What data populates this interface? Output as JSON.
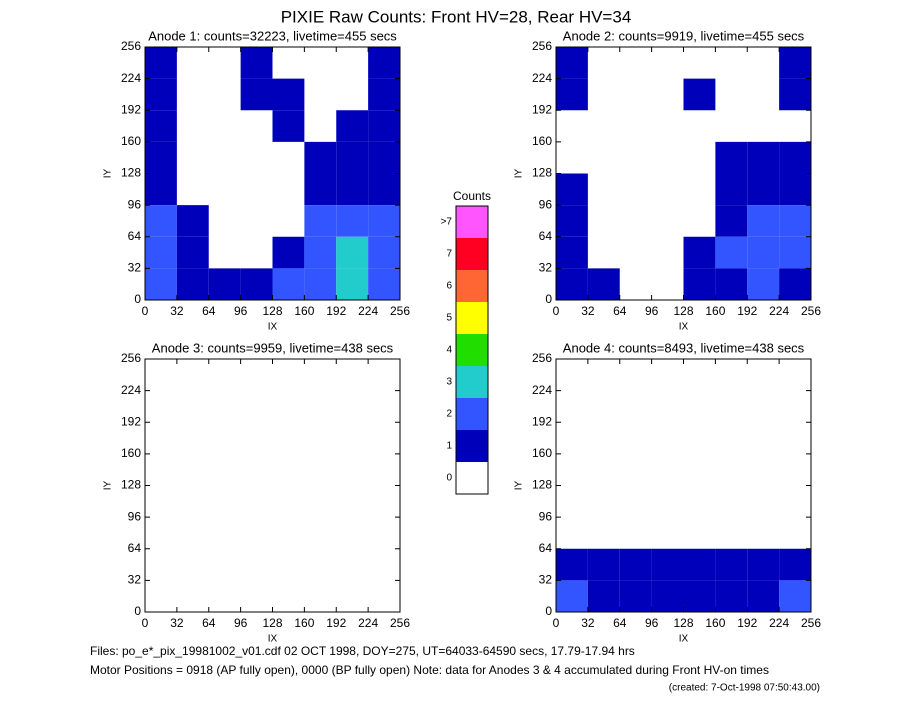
{
  "title": "PIXIE Raw Counts:  Front HV=28, Rear HV=34",
  "chart_data": [
    {
      "type": "heatmap",
      "title": "Anode 1: counts=32223, livetime=455 secs",
      "xlabel": "IX",
      "ylabel": "IY",
      "xlim": [
        0,
        256
      ],
      "ylim": [
        0,
        256
      ],
      "xticks": [
        0,
        32,
        64,
        96,
        128,
        160,
        192,
        224,
        256
      ],
      "yticks": [
        0,
        32,
        64,
        96,
        128,
        160,
        192,
        224,
        256
      ],
      "z": [
        [
          1,
          0,
          0,
          1,
          0,
          0,
          0,
          1
        ],
        [
          1,
          0,
          0,
          1,
          1,
          0,
          0,
          1
        ],
        [
          1,
          0,
          0,
          0,
          1,
          0,
          1,
          1
        ],
        [
          1,
          0,
          0,
          0,
          0,
          1,
          1,
          1
        ],
        [
          1,
          0,
          0,
          0,
          0,
          1,
          1,
          1
        ],
        [
          2,
          1,
          0,
          0,
          0,
          2,
          2,
          2
        ],
        [
          2,
          1,
          0,
          0,
          1,
          2,
          3,
          2
        ],
        [
          2,
          1,
          1,
          1,
          2,
          2,
          3,
          2
        ]
      ]
    },
    {
      "type": "heatmap",
      "title": "Anode 2: counts=9919, livetime=455 secs",
      "xlabel": "IX",
      "ylabel": "IY",
      "xlim": [
        0,
        256
      ],
      "ylim": [
        0,
        256
      ],
      "xticks": [
        0,
        32,
        64,
        96,
        128,
        160,
        192,
        224,
        256
      ],
      "yticks": [
        0,
        32,
        64,
        96,
        128,
        160,
        192,
        224,
        256
      ],
      "z": [
        [
          1,
          0,
          0,
          0,
          0,
          0,
          0,
          1
        ],
        [
          1,
          0,
          0,
          0,
          1,
          0,
          0,
          1
        ],
        [
          0,
          0,
          0,
          0,
          0,
          0,
          0,
          0
        ],
        [
          0,
          0,
          0,
          0,
          0,
          1,
          1,
          1
        ],
        [
          1,
          0,
          0,
          0,
          0,
          1,
          1,
          1
        ],
        [
          1,
          0,
          0,
          0,
          0,
          1,
          2,
          2
        ],
        [
          1,
          0,
          0,
          0,
          1,
          2,
          2,
          2
        ],
        [
          1,
          1,
          0,
          0,
          1,
          1,
          2,
          1
        ]
      ]
    },
    {
      "type": "heatmap",
      "title": "Anode 3: counts=9959, livetime=438 secs",
      "xlabel": "IX",
      "ylabel": "IY",
      "xlim": [
        0,
        256
      ],
      "ylim": [
        0,
        256
      ],
      "xticks": [
        0,
        32,
        64,
        96,
        128,
        160,
        192,
        224,
        256
      ],
      "yticks": [
        0,
        32,
        64,
        96,
        128,
        160,
        192,
        224,
        256
      ],
      "z": [
        [
          0,
          0,
          0,
          0,
          0,
          0,
          0,
          0
        ],
        [
          0,
          0,
          0,
          0,
          0,
          0,
          0,
          0
        ],
        [
          0,
          0,
          0,
          0,
          0,
          0,
          0,
          0
        ],
        [
          0,
          0,
          0,
          0,
          0,
          0,
          0,
          0
        ],
        [
          0,
          0,
          0,
          0,
          0,
          0,
          0,
          0
        ],
        [
          0,
          0,
          0,
          0,
          0,
          0,
          0,
          0
        ],
        [
          0,
          0,
          0,
          0,
          0,
          0,
          0,
          0
        ],
        [
          0,
          0,
          0,
          0,
          0,
          0,
          0,
          0
        ]
      ]
    },
    {
      "type": "heatmap",
      "title": "Anode 4: counts=8493, livetime=438 secs",
      "xlabel": "IX",
      "ylabel": "IY",
      "xlim": [
        0,
        256
      ],
      "ylim": [
        0,
        256
      ],
      "xticks": [
        0,
        32,
        64,
        96,
        128,
        160,
        192,
        224,
        256
      ],
      "yticks": [
        0,
        32,
        64,
        96,
        128,
        160,
        192,
        224,
        256
      ],
      "z": [
        [
          0,
          0,
          0,
          0,
          0,
          0,
          0,
          0
        ],
        [
          0,
          0,
          0,
          0,
          0,
          0,
          0,
          0
        ],
        [
          0,
          0,
          0,
          0,
          0,
          0,
          0,
          0
        ],
        [
          0,
          0,
          0,
          0,
          0,
          0,
          0,
          0
        ],
        [
          0,
          0,
          0,
          0,
          0,
          0,
          0,
          0
        ],
        [
          0,
          0,
          0,
          0,
          0,
          0,
          0,
          0
        ],
        [
          1,
          1,
          1,
          1,
          1,
          1,
          1,
          1
        ],
        [
          2,
          1,
          1,
          1,
          1,
          1,
          1,
          2
        ]
      ]
    }
  ],
  "colorbar": {
    "title": "Counts",
    "labels": [
      ">7",
      "7",
      "6",
      "5",
      "4",
      "3",
      "2",
      "1",
      "0"
    ],
    "colors": [
      "#ff55ff",
      "#ff0022",
      "#ff6633",
      "#ffff00",
      "#22dd00",
      "#22cccc",
      "#3355ff",
      "#0000bb",
      "#ffffff"
    ]
  },
  "notes": [
    "Files: po_e*_pix_19981002_v01.cdf    02 OCT 1998, DOY=275, UT=64033-64590 secs, 17.79-17.94 hrs",
    "Motor Positions = 0918 (AP fully open), 0000 (BP fully open)    Note: data for Anodes 3 & 4 accumulated during Front HV-on times",
    "(created:  7-Oct-1998 07:50:43.00)"
  ]
}
